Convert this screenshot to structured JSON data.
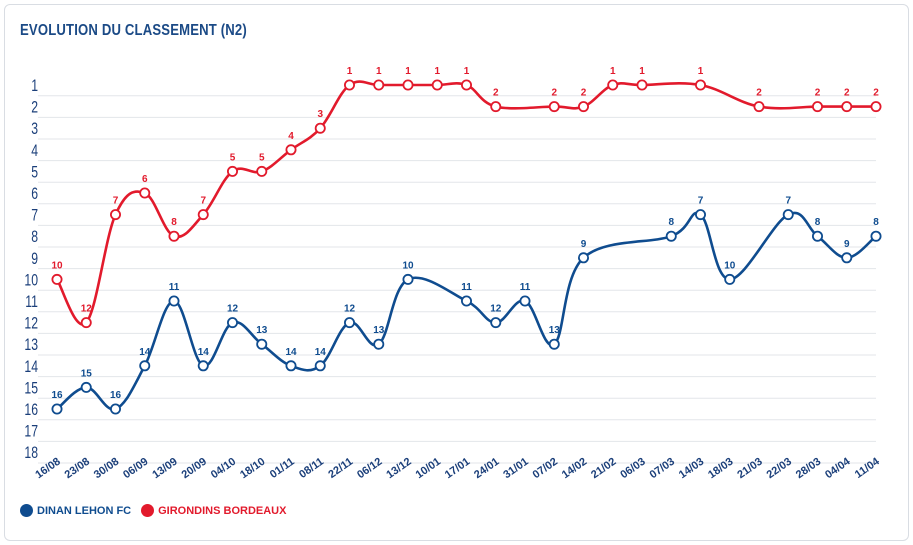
{
  "chart_data": {
    "type": "line",
    "title": "EVOLUTION DU CLASSEMENT (N2)",
    "xlabel": "",
    "ylabel": "",
    "ylim": [
      1,
      18
    ],
    "y_inverted": true,
    "yticks": [
      1,
      2,
      3,
      4,
      5,
      6,
      7,
      8,
      9,
      10,
      11,
      12,
      13,
      14,
      15,
      16,
      17,
      18
    ],
    "categories": [
      "16/08",
      "23/08",
      "30/08",
      "06/09",
      "13/09",
      "20/09",
      "04/10",
      "18/10",
      "01/11",
      "08/11",
      "22/11",
      "06/12",
      "13/12",
      "10/01",
      "17/01",
      "24/01",
      "31/01",
      "07/02",
      "14/02",
      "21/02",
      "06/03",
      "07/03",
      "14/03",
      "18/03",
      "21/03",
      "22/03",
      "28/03",
      "04/04",
      "11/04"
    ],
    "series": [
      {
        "name": "DINAN LEHON FC",
        "color": "#0f4c8f",
        "values": [
          16,
          15,
          16,
          14,
          11,
          14,
          12,
          13,
          14,
          14,
          12,
          13,
          10,
          null,
          11,
          12,
          11,
          13,
          9,
          null,
          null,
          8,
          7,
          10,
          null,
          7,
          8,
          9,
          8
        ],
        "labeled": [
          true,
          true,
          true,
          true,
          true,
          true,
          true,
          true,
          true,
          true,
          true,
          true,
          true,
          false,
          true,
          true,
          true,
          true,
          true,
          false,
          false,
          true,
          true,
          true,
          false,
          true,
          true,
          true,
          true
        ]
      },
      {
        "name": "GIRONDINS BORDEAUX",
        "color": "#e21a2c",
        "values": [
          10,
          12,
          7,
          6,
          8,
          7,
          5,
          5,
          4,
          3,
          1,
          1,
          1,
          1,
          1,
          2,
          null,
          2,
          2,
          1,
          1,
          null,
          1,
          null,
          2,
          null,
          2,
          2,
          2
        ],
        "labeled": [
          true,
          true,
          true,
          true,
          true,
          true,
          true,
          true,
          true,
          true,
          true,
          true,
          true,
          true,
          true,
          true,
          false,
          true,
          true,
          true,
          true,
          false,
          true,
          false,
          true,
          false,
          true,
          true,
          true
        ]
      }
    ]
  }
}
